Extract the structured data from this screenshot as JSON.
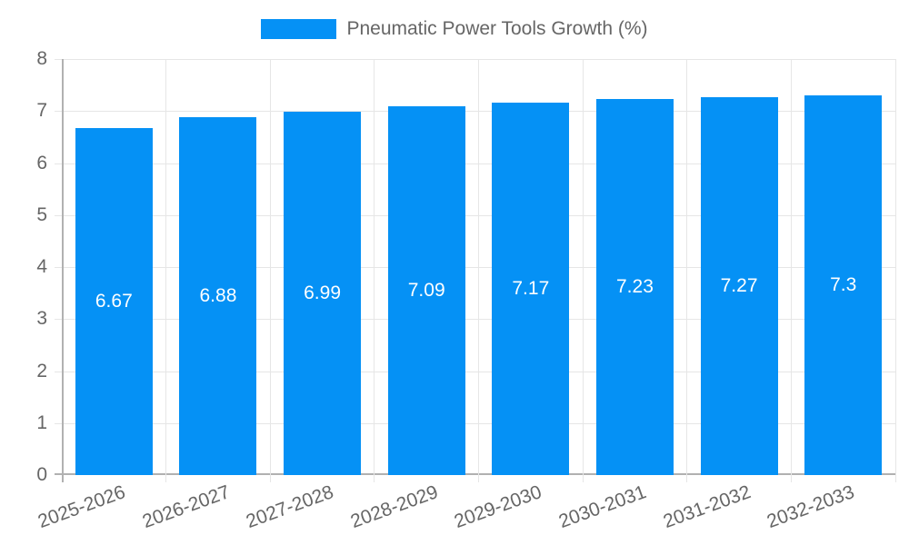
{
  "legend": {
    "label": "Pneumatic Power Tools Growth (%)"
  },
  "chart_data": {
    "type": "bar",
    "categories": [
      "2025-2026",
      "2026-2027",
      "2027-2028",
      "2028-2029",
      "2029-2030",
      "2030-2031",
      "2031-2032",
      "2032-2033"
    ],
    "values": [
      6.67,
      6.88,
      6.99,
      7.09,
      7.17,
      7.23,
      7.27,
      7.3
    ],
    "series_name": "Pneumatic Power Tools Growth (%)",
    "title": "",
    "xlabel": "",
    "ylabel": "",
    "ylim": [
      0,
      8
    ],
    "y_ticks": [
      0,
      1,
      2,
      3,
      4,
      5,
      6,
      7,
      8
    ],
    "grid": true,
    "legend_position": "top",
    "bar_color": "#0591f5",
    "value_label_color": "#ffffff",
    "axis_text_color": "#666666"
  }
}
